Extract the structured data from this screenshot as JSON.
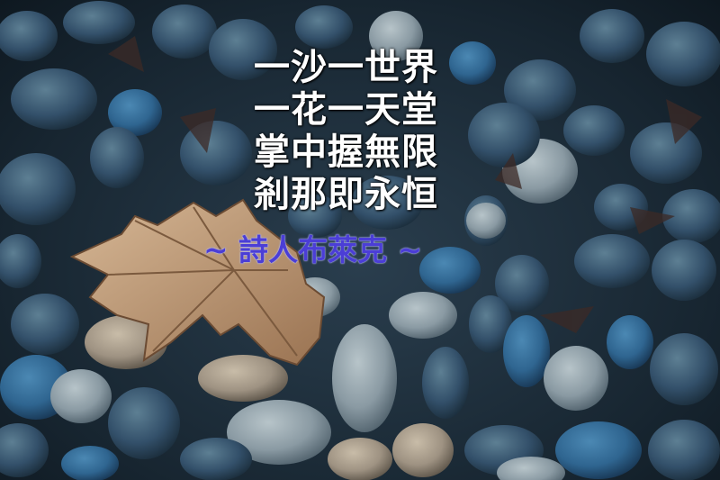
{
  "poem": {
    "lines": [
      "一沙一世界",
      "一花一天堂",
      "掌中握無限",
      "剎那即永恒"
    ]
  },
  "attribution": "~ 詩人布萊克 ~",
  "colors": {
    "poem_text": "#ffffff",
    "attribution_text": "#4b3ed6",
    "stone_base": "#2e4a5c",
    "leaf": "#b99470"
  }
}
